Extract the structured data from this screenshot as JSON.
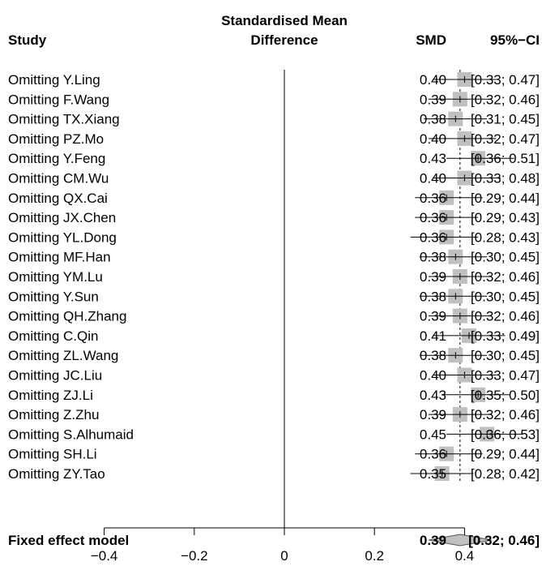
{
  "header": {
    "study": "Study",
    "effect_line1": "Standardised Mean",
    "effect_line2": "Difference",
    "smd": "SMD",
    "ci": "95%−CI"
  },
  "chart_data": {
    "type": "forest",
    "title": "",
    "xlabel": "",
    "xlim": [
      -0.45,
      0.65
    ],
    "x_ticks": [
      -0.4,
      -0.2,
      0,
      0.2,
      0.4
    ],
    "x_tick_labels": [
      "−0.4",
      "−0.2",
      "0",
      "0.2",
      "0.4"
    ],
    "reference_line": 0,
    "pooled_dashed_line": 0.39,
    "studies": [
      {
        "label": "Omitting Y.Ling",
        "smd": 0.4,
        "lower": 0.33,
        "upper": 0.47,
        "smd_text": "0.40",
        "ci_text": "[0.33; 0.47]"
      },
      {
        "label": "Omitting F.Wang",
        "smd": 0.39,
        "lower": 0.32,
        "upper": 0.46,
        "smd_text": "0.39",
        "ci_text": "[0.32; 0.46]"
      },
      {
        "label": "Omitting TX.Xiang",
        "smd": 0.38,
        "lower": 0.31,
        "upper": 0.45,
        "smd_text": "0.38",
        "ci_text": "[0.31; 0.45]"
      },
      {
        "label": "Omitting PZ.Mo",
        "smd": 0.4,
        "lower": 0.32,
        "upper": 0.47,
        "smd_text": "0.40",
        "ci_text": "[0.32; 0.47]"
      },
      {
        "label": "Omitting Y.Feng",
        "smd": 0.43,
        "lower": 0.36,
        "upper": 0.51,
        "smd_text": "0.43",
        "ci_text": "[0.36; 0.51]"
      },
      {
        "label": "Omitting CM.Wu",
        "smd": 0.4,
        "lower": 0.33,
        "upper": 0.48,
        "smd_text": "0.40",
        "ci_text": "[0.33; 0.48]"
      },
      {
        "label": "Omitting QX.Cai",
        "smd": 0.36,
        "lower": 0.29,
        "upper": 0.44,
        "smd_text": "0.36",
        "ci_text": "[0.29; 0.44]"
      },
      {
        "label": "Omitting JX.Chen",
        "smd": 0.36,
        "lower": 0.29,
        "upper": 0.43,
        "smd_text": "0.36",
        "ci_text": "[0.29; 0.43]"
      },
      {
        "label": "Omitting YL.Dong",
        "smd": 0.36,
        "lower": 0.28,
        "upper": 0.43,
        "smd_text": "0.36",
        "ci_text": "[0.28; 0.43]"
      },
      {
        "label": "Omitting MF.Han",
        "smd": 0.38,
        "lower": 0.3,
        "upper": 0.45,
        "smd_text": "0.38",
        "ci_text": "[0.30; 0.45]"
      },
      {
        "label": "Omitting YM.Lu",
        "smd": 0.39,
        "lower": 0.32,
        "upper": 0.46,
        "smd_text": "0.39",
        "ci_text": "[0.32; 0.46]"
      },
      {
        "label": "Omitting Y.Sun",
        "smd": 0.38,
        "lower": 0.3,
        "upper": 0.45,
        "smd_text": "0.38",
        "ci_text": "[0.30; 0.45]"
      },
      {
        "label": "Omitting QH.Zhang",
        "smd": 0.39,
        "lower": 0.32,
        "upper": 0.46,
        "smd_text": "0.39",
        "ci_text": "[0.32; 0.46]"
      },
      {
        "label": "Omitting C.Qin",
        "smd": 0.41,
        "lower": 0.33,
        "upper": 0.49,
        "smd_text": "0.41",
        "ci_text": "[0.33; 0.49]"
      },
      {
        "label": "Omitting ZL.Wang",
        "smd": 0.38,
        "lower": 0.3,
        "upper": 0.45,
        "smd_text": "0.38",
        "ci_text": "[0.30; 0.45]"
      },
      {
        "label": "Omitting JC.Liu",
        "smd": 0.4,
        "lower": 0.33,
        "upper": 0.47,
        "smd_text": "0.40",
        "ci_text": "[0.33; 0.47]"
      },
      {
        "label": "Omitting ZJ.Li",
        "smd": 0.43,
        "lower": 0.35,
        "upper": 0.5,
        "smd_text": "0.43",
        "ci_text": "[0.35; 0.50]"
      },
      {
        "label": "Omitting Z.Zhu",
        "smd": 0.39,
        "lower": 0.32,
        "upper": 0.46,
        "smd_text": "0.39",
        "ci_text": "[0.32; 0.46]"
      },
      {
        "label": "Omitting S.Alhumaid",
        "smd": 0.45,
        "lower": 0.36,
        "upper": 0.53,
        "smd_text": "0.45",
        "ci_text": "[0.36; 0.53]"
      },
      {
        "label": "Omitting SH.Li",
        "smd": 0.36,
        "lower": 0.29,
        "upper": 0.44,
        "smd_text": "0.36",
        "ci_text": "[0.29; 0.44]"
      },
      {
        "label": "Omitting ZY.Tao",
        "smd": 0.35,
        "lower": 0.28,
        "upper": 0.42,
        "smd_text": "0.35",
        "ci_text": "[0.28; 0.42]"
      }
    ],
    "pooled": {
      "label": "Fixed effect model",
      "smd": 0.39,
      "lower": 0.32,
      "upper": 0.46,
      "smd_text": "0.39",
      "ci_text": "[0.32; 0.46]"
    },
    "colors": {
      "box": "#c0c0c0",
      "line": "#000000",
      "diamond": "#c0c0c0"
    }
  }
}
